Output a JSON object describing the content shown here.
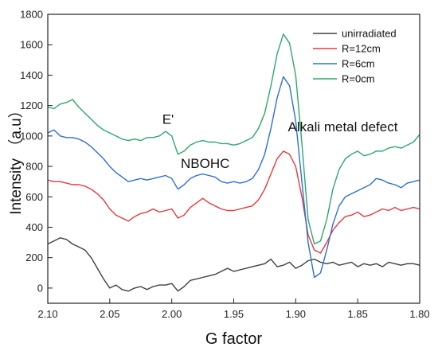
{
  "chart_data": {
    "type": "line",
    "xlabel": "G factor",
    "ylabel": "Intensity （a.u）",
    "xlim": [
      2.1,
      1.8
    ],
    "ylim": [
      -100,
      1800
    ],
    "x_reversed": true,
    "xticks": [
      "2.10",
      "2.05",
      "2.00",
      "1.95",
      "1.90",
      "1.85",
      "1.80"
    ],
    "yticks": [
      "0",
      "200",
      "400",
      "600",
      "800",
      "1000",
      "1200",
      "1400",
      "1600",
      "1800"
    ],
    "grid": false,
    "legend_position": "top-right",
    "annotations": [
      {
        "text": "E'",
        "x": 2.003,
        "y": 1080
      },
      {
        "text": "NBOHC",
        "x": 1.973,
        "y": 790
      },
      {
        "text": "Alkali metal defect",
        "x": 1.862,
        "y": 1030
      }
    ],
    "series": [
      {
        "name": "unirradiated",
        "color": "#404040",
        "points": [
          [
            2.1,
            290
          ],
          [
            2.095,
            310
          ],
          [
            2.09,
            330
          ],
          [
            2.085,
            320
          ],
          [
            2.08,
            290
          ],
          [
            2.075,
            270
          ],
          [
            2.07,
            250
          ],
          [
            2.065,
            200
          ],
          [
            2.06,
            130
          ],
          [
            2.055,
            60
          ],
          [
            2.05,
            0
          ],
          [
            2.045,
            20
          ],
          [
            2.04,
            -10
          ],
          [
            2.035,
            -20
          ],
          [
            2.03,
            0
          ],
          [
            2.025,
            10
          ],
          [
            2.02,
            -10
          ],
          [
            2.015,
            10
          ],
          [
            2.01,
            20
          ],
          [
            2.005,
            20
          ],
          [
            2.0,
            30
          ],
          [
            1.995,
            -20
          ],
          [
            1.99,
            10
          ],
          [
            1.985,
            50
          ],
          [
            1.98,
            60
          ],
          [
            1.975,
            70
          ],
          [
            1.97,
            80
          ],
          [
            1.965,
            90
          ],
          [
            1.96,
            110
          ],
          [
            1.955,
            130
          ],
          [
            1.95,
            110
          ],
          [
            1.945,
            120
          ],
          [
            1.94,
            130
          ],
          [
            1.935,
            140
          ],
          [
            1.93,
            150
          ],
          [
            1.925,
            160
          ],
          [
            1.92,
            190
          ],
          [
            1.915,
            140
          ],
          [
            1.91,
            150
          ],
          [
            1.905,
            170
          ],
          [
            1.9,
            130
          ],
          [
            1.895,
            150
          ],
          [
            1.89,
            180
          ],
          [
            1.885,
            190
          ],
          [
            1.88,
            170
          ],
          [
            1.875,
            160
          ],
          [
            1.87,
            170
          ],
          [
            1.865,
            150
          ],
          [
            1.86,
            160
          ],
          [
            1.855,
            170
          ],
          [
            1.85,
            140
          ],
          [
            1.845,
            160
          ],
          [
            1.84,
            150
          ],
          [
            1.835,
            160
          ],
          [
            1.83,
            140
          ],
          [
            1.825,
            170
          ],
          [
            1.82,
            160
          ],
          [
            1.815,
            150
          ],
          [
            1.81,
            160
          ],
          [
            1.805,
            160
          ],
          [
            1.8,
            150
          ]
        ]
      },
      {
        "name": "R=12cm",
        "color": "#e8383d",
        "points": [
          [
            2.1,
            710
          ],
          [
            2.095,
            700
          ],
          [
            2.09,
            700
          ],
          [
            2.085,
            690
          ],
          [
            2.08,
            680
          ],
          [
            2.075,
            680
          ],
          [
            2.07,
            670
          ],
          [
            2.065,
            650
          ],
          [
            2.06,
            620
          ],
          [
            2.055,
            580
          ],
          [
            2.05,
            520
          ],
          [
            2.045,
            480
          ],
          [
            2.04,
            460
          ],
          [
            2.035,
            440
          ],
          [
            2.03,
            470
          ],
          [
            2.025,
            490
          ],
          [
            2.02,
            500
          ],
          [
            2.015,
            520
          ],
          [
            2.01,
            500
          ],
          [
            2.005,
            510
          ],
          [
            2.0,
            520
          ],
          [
            1.995,
            460
          ],
          [
            1.99,
            480
          ],
          [
            1.985,
            530
          ],
          [
            1.98,
            560
          ],
          [
            1.975,
            590
          ],
          [
            1.97,
            560
          ],
          [
            1.965,
            540
          ],
          [
            1.96,
            520
          ],
          [
            1.955,
            510
          ],
          [
            1.95,
            510
          ],
          [
            1.945,
            520
          ],
          [
            1.94,
            530
          ],
          [
            1.935,
            540
          ],
          [
            1.93,
            580
          ],
          [
            1.925,
            650
          ],
          [
            1.92,
            750
          ],
          [
            1.915,
            850
          ],
          [
            1.91,
            900
          ],
          [
            1.905,
            880
          ],
          [
            1.9,
            800
          ],
          [
            1.895,
            600
          ],
          [
            1.89,
            350
          ],
          [
            1.885,
            250
          ],
          [
            1.88,
            230
          ],
          [
            1.875,
            300
          ],
          [
            1.87,
            380
          ],
          [
            1.865,
            430
          ],
          [
            1.86,
            470
          ],
          [
            1.855,
            480
          ],
          [
            1.85,
            500
          ],
          [
            1.845,
            470
          ],
          [
            1.84,
            480
          ],
          [
            1.835,
            500
          ],
          [
            1.83,
            520
          ],
          [
            1.825,
            510
          ],
          [
            1.82,
            530
          ],
          [
            1.815,
            510
          ],
          [
            1.81,
            520
          ],
          [
            1.805,
            530
          ],
          [
            1.8,
            520
          ]
        ]
      },
      {
        "name": "R=6cm",
        "color": "#2f6fd6",
        "points": [
          [
            2.1,
            1020
          ],
          [
            2.095,
            1040
          ],
          [
            2.09,
            1000
          ],
          [
            2.085,
            990
          ],
          [
            2.08,
            990
          ],
          [
            2.075,
            980
          ],
          [
            2.07,
            960
          ],
          [
            2.065,
            930
          ],
          [
            2.06,
            890
          ],
          [
            2.055,
            850
          ],
          [
            2.05,
            800
          ],
          [
            2.045,
            760
          ],
          [
            2.04,
            730
          ],
          [
            2.035,
            700
          ],
          [
            2.03,
            710
          ],
          [
            2.025,
            720
          ],
          [
            2.02,
            710
          ],
          [
            2.015,
            720
          ],
          [
            2.01,
            730
          ],
          [
            2.005,
            740
          ],
          [
            2.0,
            720
          ],
          [
            1.995,
            650
          ],
          [
            1.99,
            680
          ],
          [
            1.985,
            720
          ],
          [
            1.98,
            740
          ],
          [
            1.975,
            750
          ],
          [
            1.97,
            740
          ],
          [
            1.965,
            730
          ],
          [
            1.96,
            700
          ],
          [
            1.955,
            690
          ],
          [
            1.95,
            700
          ],
          [
            1.945,
            690
          ],
          [
            1.94,
            700
          ],
          [
            1.935,
            720
          ],
          [
            1.93,
            780
          ],
          [
            1.925,
            880
          ],
          [
            1.92,
            1050
          ],
          [
            1.915,
            1250
          ],
          [
            1.91,
            1390
          ],
          [
            1.905,
            1330
          ],
          [
            1.9,
            1100
          ],
          [
            1.895,
            700
          ],
          [
            1.89,
            300
          ],
          [
            1.885,
            70
          ],
          [
            1.88,
            100
          ],
          [
            1.875,
            250
          ],
          [
            1.87,
            420
          ],
          [
            1.865,
            540
          ],
          [
            1.86,
            600
          ],
          [
            1.855,
            620
          ],
          [
            1.85,
            640
          ],
          [
            1.845,
            660
          ],
          [
            1.84,
            680
          ],
          [
            1.835,
            720
          ],
          [
            1.83,
            710
          ],
          [
            1.825,
            690
          ],
          [
            1.82,
            680
          ],
          [
            1.815,
            660
          ],
          [
            1.81,
            690
          ],
          [
            1.805,
            700
          ],
          [
            1.8,
            710
          ]
        ]
      },
      {
        "name": "R=0cm",
        "color": "#2ea86a",
        "points": [
          [
            2.1,
            1190
          ],
          [
            2.095,
            1180
          ],
          [
            2.09,
            1210
          ],
          [
            2.085,
            1220
          ],
          [
            2.08,
            1240
          ],
          [
            2.075,
            1190
          ],
          [
            2.07,
            1150
          ],
          [
            2.065,
            1110
          ],
          [
            2.06,
            1070
          ],
          [
            2.055,
            1040
          ],
          [
            2.05,
            1020
          ],
          [
            2.045,
            1000
          ],
          [
            2.04,
            980
          ],
          [
            2.035,
            970
          ],
          [
            2.03,
            980
          ],
          [
            2.025,
            970
          ],
          [
            2.02,
            990
          ],
          [
            2.015,
            990
          ],
          [
            2.01,
            1000
          ],
          [
            2.005,
            1030
          ],
          [
            2.0,
            1000
          ],
          [
            1.995,
            880
          ],
          [
            1.99,
            900
          ],
          [
            1.985,
            940
          ],
          [
            1.98,
            960
          ],
          [
            1.975,
            970
          ],
          [
            1.97,
            960
          ],
          [
            1.965,
            960
          ],
          [
            1.96,
            950
          ],
          [
            1.955,
            950
          ],
          [
            1.95,
            940
          ],
          [
            1.945,
            950
          ],
          [
            1.94,
            970
          ],
          [
            1.935,
            990
          ],
          [
            1.93,
            1050
          ],
          [
            1.925,
            1150
          ],
          [
            1.92,
            1330
          ],
          [
            1.915,
            1540
          ],
          [
            1.91,
            1670
          ],
          [
            1.905,
            1610
          ],
          [
            1.9,
            1400
          ],
          [
            1.895,
            950
          ],
          [
            1.89,
            450
          ],
          [
            1.885,
            290
          ],
          [
            1.88,
            310
          ],
          [
            1.875,
            450
          ],
          [
            1.87,
            650
          ],
          [
            1.865,
            780
          ],
          [
            1.86,
            850
          ],
          [
            1.855,
            880
          ],
          [
            1.85,
            900
          ],
          [
            1.845,
            870
          ],
          [
            1.84,
            880
          ],
          [
            1.835,
            900
          ],
          [
            1.83,
            900
          ],
          [
            1.825,
            920
          ],
          [
            1.82,
            930
          ],
          [
            1.815,
            920
          ],
          [
            1.81,
            940
          ],
          [
            1.805,
            960
          ],
          [
            1.8,
            1010
          ]
        ]
      }
    ]
  }
}
